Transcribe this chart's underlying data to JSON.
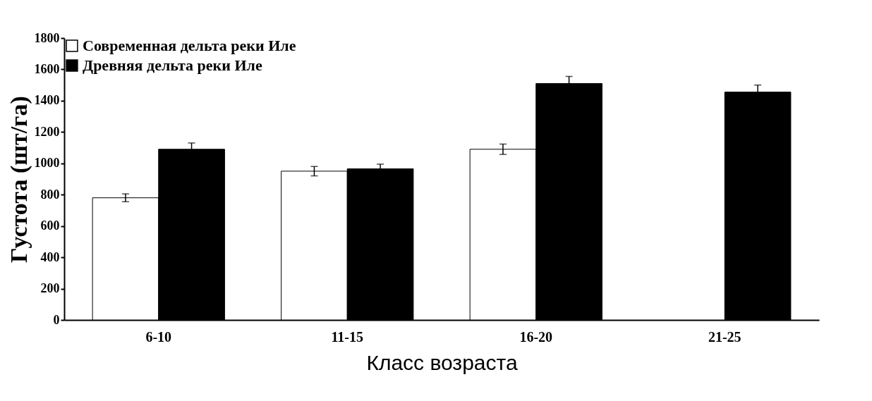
{
  "chart_data": {
    "type": "bar",
    "xlabel": "Класс возраста",
    "ylabel": "Густота   (шт/га)",
    "categories": [
      "6-10",
      "11-15",
      "16-20",
      "21-25"
    ],
    "series": [
      {
        "name": "Современная дельта реки Иле",
        "color": "#ffffff",
        "values": [
          780,
          950,
          1090,
          null
        ],
        "errors": [
          25,
          30,
          33,
          null
        ]
      },
      {
        "name": "Древняя дельта реки Иле",
        "color": "#000000",
        "values": [
          1090,
          965,
          1510,
          1455
        ],
        "errors": [
          40,
          30,
          45,
          45
        ]
      }
    ],
    "ylim": [
      0,
      1800
    ],
    "yticks": [
      0,
      200,
      400,
      600,
      800,
      1000,
      1200,
      1400,
      1600,
      1800
    ],
    "grid": false,
    "legend": "top left"
  }
}
